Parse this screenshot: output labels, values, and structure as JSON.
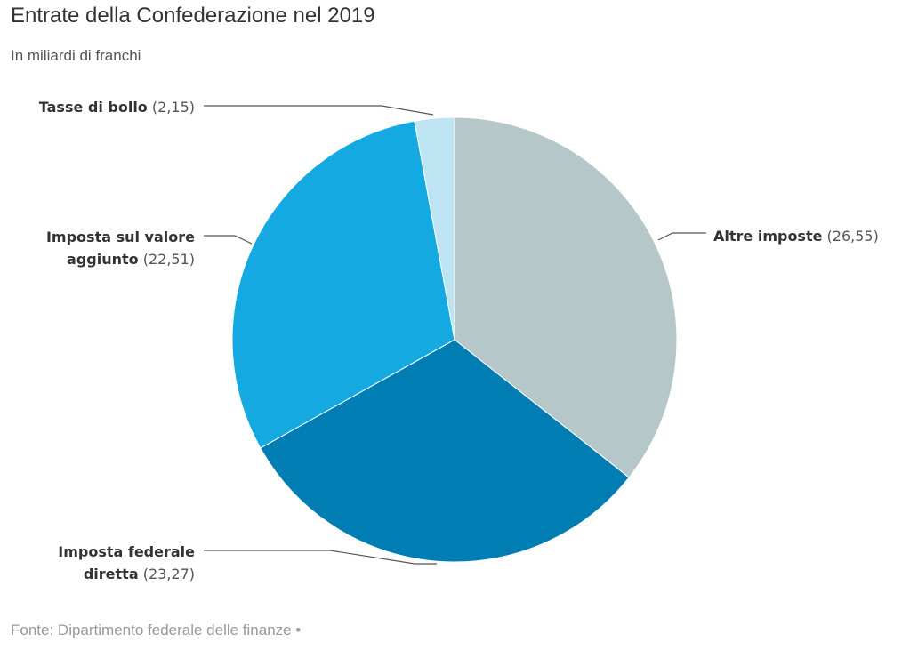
{
  "header": {
    "title": "Entrate della Confederazione nel 2019",
    "subtitle": "In miliardi di franchi"
  },
  "footer": {
    "source": "Fonte: Dipartimento federale delle finanze •"
  },
  "chart_data": {
    "type": "pie",
    "title": "Entrate della Confederazione nel 2019",
    "subtitle": "In miliardi di franchi",
    "slices": [
      {
        "label": "Altre imposte",
        "label_lines": [
          "Altre imposte"
        ],
        "value": 26.55,
        "value_text": "(26,55)",
        "color": "#b6c7c9"
      },
      {
        "label": "Imposta federale diretta",
        "label_lines": [
          "Imposta federale",
          "diretta"
        ],
        "value": 23.27,
        "value_text": "(23,27)",
        "color": "#007db3"
      },
      {
        "label": "Imposta sul valore aggiunto",
        "label_lines": [
          "Imposta sul valore",
          "aggiunto"
        ],
        "value": 22.51,
        "value_text": "(22,51)",
        "color": "#14a9e1"
      },
      {
        "label": "Tasse di bollo",
        "label_lines": [
          "Tasse di bollo"
        ],
        "value": 2.15,
        "value_text": "(2,15)",
        "color": "#bde4f2"
      }
    ],
    "start_angle_deg": 0,
    "direction": "clockwise"
  }
}
